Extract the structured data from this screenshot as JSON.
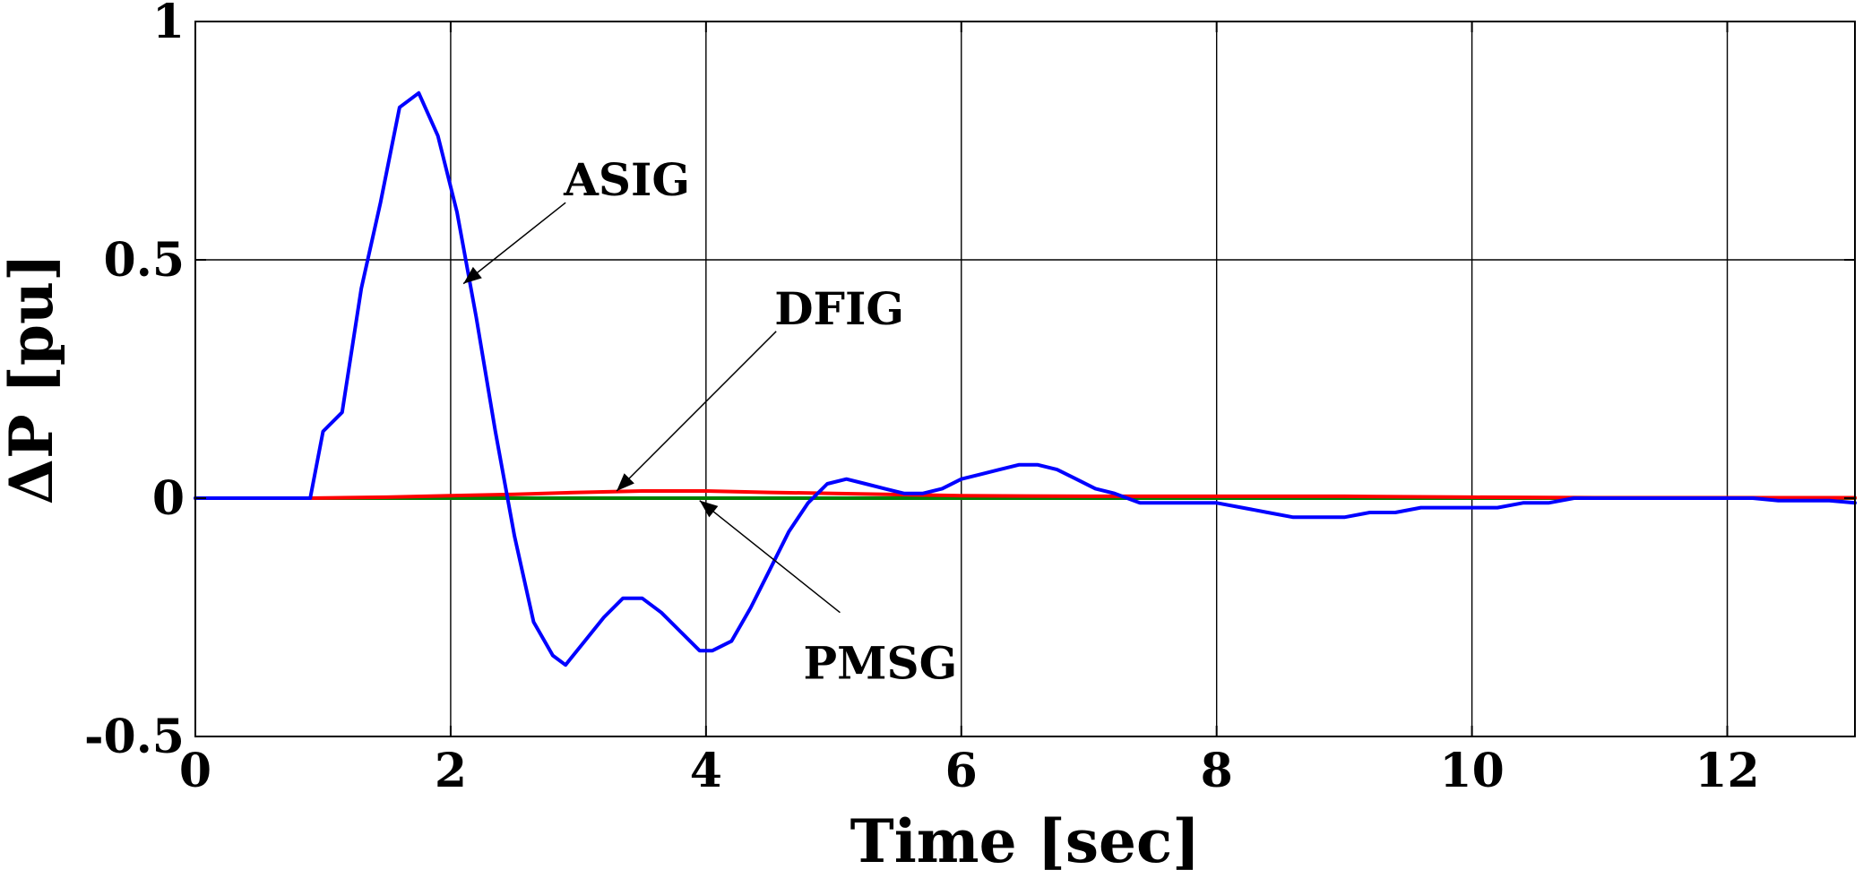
{
  "chart_data": {
    "type": "line",
    "xlabel": "Time [sec]",
    "ylabel": "ΔP [pu]",
    "xlim": [
      0,
      13
    ],
    "ylim": [
      -0.5,
      1
    ],
    "xticks": [
      0,
      2,
      4,
      6,
      8,
      10,
      12
    ],
    "xtick_labels": [
      "0",
      "2",
      "4",
      "6",
      "8",
      "10",
      "12"
    ],
    "yticks": [
      -0.5,
      0,
      0.5,
      1
    ],
    "ytick_labels": [
      "-0.5",
      "0",
      "0.5",
      "1"
    ],
    "grid": true,
    "series": [
      {
        "name": "ASIG",
        "color": "#0000ff",
        "x": [
          0,
          0.9,
          1.0,
          1.15,
          1.3,
          1.45,
          1.6,
          1.75,
          1.9,
          2.05,
          2.2,
          2.35,
          2.5,
          2.65,
          2.8,
          2.9,
          3.05,
          3.2,
          3.35,
          3.5,
          3.65,
          3.8,
          3.95,
          4.05,
          4.2,
          4.35,
          4.5,
          4.65,
          4.8,
          4.95,
          5.1,
          5.25,
          5.4,
          5.55,
          5.7,
          5.85,
          6.0,
          6.15,
          6.3,
          6.45,
          6.6,
          6.75,
          6.9,
          7.05,
          7.2,
          7.4,
          7.6,
          7.8,
          8.0,
          8.2,
          8.4,
          8.6,
          8.8,
          9.0,
          9.2,
          9.4,
          9.6,
          9.8,
          10.0,
          10.2,
          10.4,
          10.6,
          10.8,
          11.0,
          11.2,
          11.4,
          11.6,
          11.8,
          12.0,
          12.2,
          12.4,
          12.6,
          12.8,
          13.0
        ],
        "y": [
          0,
          0,
          0.14,
          0.18,
          0.44,
          0.62,
          0.82,
          0.85,
          0.76,
          0.6,
          0.38,
          0.14,
          -0.08,
          -0.26,
          -0.33,
          -0.35,
          -0.3,
          -0.25,
          -0.21,
          -0.21,
          -0.24,
          -0.28,
          -0.32,
          -0.32,
          -0.3,
          -0.23,
          -0.15,
          -0.07,
          -0.01,
          0.03,
          0.04,
          0.03,
          0.02,
          0.01,
          0.01,
          0.02,
          0.04,
          0.05,
          0.06,
          0.07,
          0.07,
          0.06,
          0.04,
          0.02,
          0.01,
          -0.01,
          -0.01,
          -0.01,
          -0.01,
          -0.02,
          -0.03,
          -0.04,
          -0.04,
          -0.04,
          -0.03,
          -0.03,
          -0.02,
          -0.02,
          -0.02,
          -0.02,
          -0.01,
          -0.01,
          0,
          0,
          0,
          0,
          0,
          0,
          0,
          0,
          -0.005,
          -0.005,
          -0.005,
          -0.01
        ]
      },
      {
        "name": "DFIG",
        "color": "#ff0000",
        "x": [
          0,
          0.9,
          1.5,
          2.0,
          2.5,
          3.0,
          3.5,
          4.0,
          4.5,
          5.0,
          6.0,
          7.0,
          8.0,
          9.0,
          10.0,
          11.0,
          12.0,
          13.0
        ],
        "y": [
          0,
          0,
          0.002,
          0.005,
          0.008,
          0.012,
          0.015,
          0.015,
          0.012,
          0.01,
          0.005,
          0.004,
          0.004,
          0.004,
          0.002,
          0.001,
          0.001,
          0.001
        ]
      },
      {
        "name": "PMSG",
        "color": "#008000",
        "x": [
          0,
          13
        ],
        "y": [
          0,
          0
        ]
      }
    ],
    "annotations": [
      {
        "text": "ASIG",
        "series": "ASIG",
        "arrow_to": [
          2.1,
          0.45
        ],
        "arrow_from": [
          2.9,
          0.62
        ]
      },
      {
        "text": "DFIG",
        "series": "DFIG",
        "arrow_to": [
          3.3,
          0.015
        ],
        "arrow_from": [
          4.55,
          0.35
        ]
      },
      {
        "text": "PMSG",
        "series": "PMSG",
        "arrow_to": [
          3.95,
          -0.005
        ],
        "arrow_from": [
          5.05,
          -0.24
        ]
      }
    ]
  }
}
